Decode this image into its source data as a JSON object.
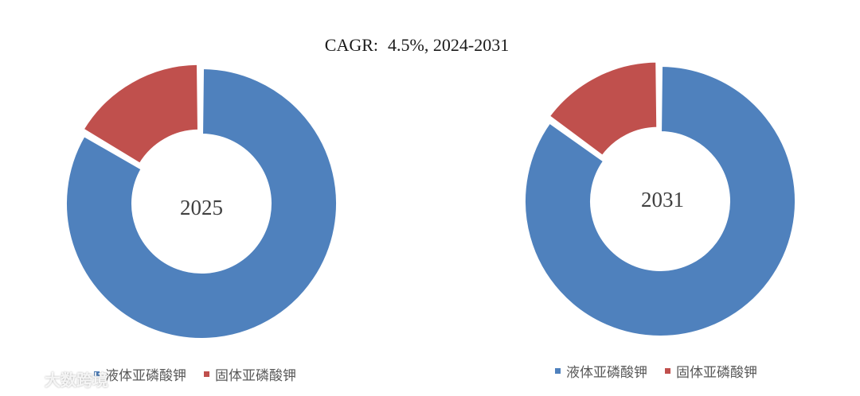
{
  "chart_data": [
    {
      "type": "pie",
      "subtype": "donut",
      "center_label": "2025",
      "categories": [
        "液体亚磷酸钾",
        "固体亚磷酸钾"
      ],
      "values": [
        83.5,
        16.5
      ],
      "colors": [
        "#4F81BD",
        "#C0504D"
      ],
      "legend_position": "bottom"
    },
    {
      "type": "pie",
      "subtype": "donut",
      "center_label": "2031",
      "categories": [
        "液体亚磷酸钾",
        "固体亚磷酸钾"
      ],
      "values": [
        85,
        15
      ],
      "colors": [
        "#4F81BD",
        "#C0504D"
      ],
      "legend_position": "bottom"
    }
  ],
  "header": {
    "cagr_label": "CAGR:",
    "cagr_value": "4.5%, 2024-2031"
  },
  "watermark": {
    "text": "大数跨境"
  }
}
